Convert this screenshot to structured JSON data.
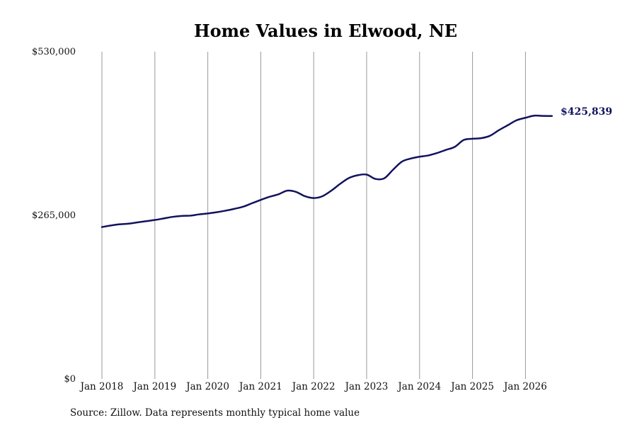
{
  "chart_data": {
    "type": "line",
    "title": "Home Values in Elwood, NE",
    "xlabel": "",
    "ylabel": "",
    "ylim": [
      0,
      530000
    ],
    "y_ticks": [
      {
        "value": 0,
        "label": "$0"
      },
      {
        "value": 265000,
        "label": "$265,000"
      },
      {
        "value": 530000,
        "label": "$530,000"
      }
    ],
    "x_ticks": [
      {
        "value": "2018-01",
        "label": "Jan 2018"
      },
      {
        "value": "2019-01",
        "label": "Jan 2019"
      },
      {
        "value": "2020-01",
        "label": "Jan 2020"
      },
      {
        "value": "2021-01",
        "label": "Jan 2021"
      },
      {
        "value": "2022-01",
        "label": "Jan 2022"
      },
      {
        "value": "2023-01",
        "label": "Jan 2023"
      },
      {
        "value": "2024-01",
        "label": "Jan 2024"
      },
      {
        "value": "2025-01",
        "label": "Jan 2025"
      },
      {
        "value": "2026-01",
        "label": "Jan 2026"
      }
    ],
    "xlim": [
      "2018-01",
      "2026-07"
    ],
    "grid": "vertical",
    "line_color": "#12125e",
    "gridline_color": "#999999",
    "series": [
      {
        "name": "",
        "points": [
          [
            "2018-01",
            246000
          ],
          [
            "2018-03",
            248500
          ],
          [
            "2018-05",
            250500
          ],
          [
            "2018-07",
            251500
          ],
          [
            "2018-09",
            253500
          ],
          [
            "2018-11",
            255500
          ],
          [
            "2019-01",
            257500
          ],
          [
            "2019-03",
            260000
          ],
          [
            "2019-05",
            262500
          ],
          [
            "2019-07",
            264000
          ],
          [
            "2019-09",
            264500
          ],
          [
            "2019-11",
            266500
          ],
          [
            "2020-01",
            268000
          ],
          [
            "2020-03",
            270000
          ],
          [
            "2020-05",
            272500
          ],
          [
            "2020-07",
            275500
          ],
          [
            "2020-09",
            279000
          ],
          [
            "2020-11",
            284500
          ],
          [
            "2021-01",
            290000
          ],
          [
            "2021-03",
            295000
          ],
          [
            "2021-05",
            299000
          ],
          [
            "2021-07",
            305000
          ],
          [
            "2021-09",
            303000
          ],
          [
            "2021-11",
            296000
          ],
          [
            "2022-01",
            293000
          ],
          [
            "2022-03",
            296000
          ],
          [
            "2022-05",
            305000
          ],
          [
            "2022-07",
            316000
          ],
          [
            "2022-09",
            325500
          ],
          [
            "2022-11",
            330000
          ],
          [
            "2023-01",
            331000
          ],
          [
            "2023-03",
            324000
          ],
          [
            "2023-05",
            325000
          ],
          [
            "2023-07",
            339000
          ],
          [
            "2023-09",
            352000
          ],
          [
            "2023-11",
            357000
          ],
          [
            "2024-01",
            360000
          ],
          [
            "2024-03",
            362000
          ],
          [
            "2024-05",
            366000
          ],
          [
            "2024-07",
            371000
          ],
          [
            "2024-09",
            376000
          ],
          [
            "2024-11",
            387000
          ],
          [
            "2025-01",
            389000
          ],
          [
            "2025-03",
            390000
          ],
          [
            "2025-05",
            394000
          ],
          [
            "2025-07",
            403000
          ],
          [
            "2025-09",
            411000
          ],
          [
            "2025-11",
            419000
          ],
          [
            "2026-01",
            423000
          ],
          [
            "2026-03",
            426500
          ],
          [
            "2026-05",
            426000
          ],
          [
            "2026-07",
            425839
          ]
        ]
      }
    ],
    "end_label": "$425,839",
    "source": "Source: Zillow. Data represents monthly typical home value"
  }
}
